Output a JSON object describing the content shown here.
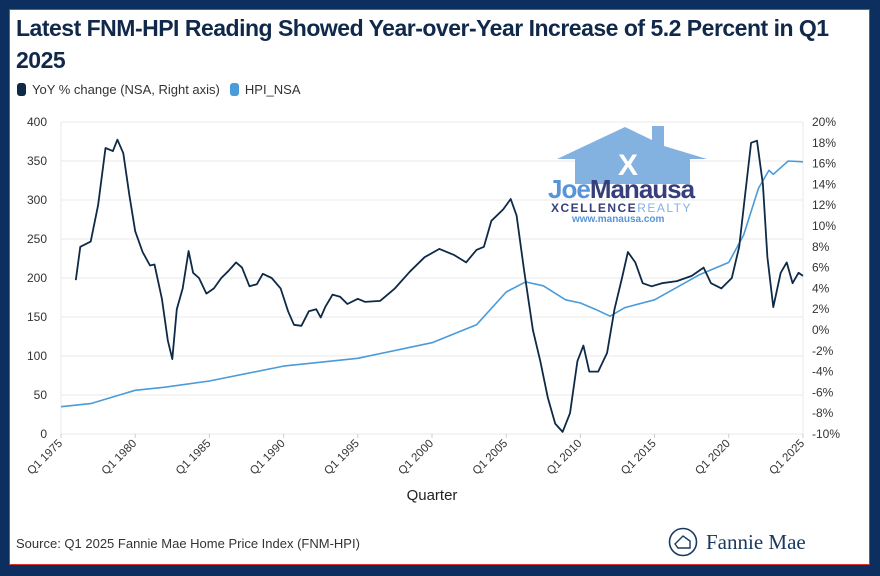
{
  "title": "Latest FNM-HPI Reading Showed Year-over-Year Increase of 5.2 Percent in Q1 2025",
  "source": "Source: Q1 2025 Fannie Mae Home Price Index (FNM-HPI)",
  "brand": "Fannie Mae",
  "watermark": {
    "line1a": "Joe",
    "line1b": "Manausa",
    "line2a": "XCELLENCE",
    "line2b": "REALTY",
    "url": "www.manausa.com"
  },
  "colors": {
    "background": "#0c2f5f",
    "yoy": "#0e2a47",
    "hpi": "#4a9bd9"
  },
  "chart_data": {
    "type": "line",
    "xlabel": "Quarter",
    "x_ticks": [
      "Q1 1975",
      "Q1 1980",
      "Q1 1985",
      "Q1 1990",
      "Q1 1995",
      "Q1 2000",
      "Q1 2005",
      "Q1 2010",
      "Q1 2015",
      "Q1 2020",
      "Q1 2025"
    ],
    "x_range": [
      1975,
      2025
    ],
    "y_left": {
      "range": [
        0,
        400
      ],
      "ticks": [
        "0",
        "50",
        "100",
        "150",
        "200",
        "250",
        "300",
        "350",
        "400"
      ]
    },
    "y_right": {
      "range": [
        -10,
        20
      ],
      "ticks": [
        "-10%",
        "-8%",
        "-6%",
        "-4%",
        "-2%",
        "0%",
        "2%",
        "4%",
        "6%",
        "8%",
        "10%",
        "12%",
        "14%",
        "16%",
        "18%",
        "20%"
      ]
    },
    "grid": true,
    "legend_position": "top-left",
    "series": [
      {
        "name": "YoY % change (NSA, Right axis)",
        "axis": "right",
        "x": [
          1976,
          1976.3,
          1977,
          1977.5,
          1978,
          1978.5,
          1978.8,
          1979.2,
          1979.6,
          1980,
          1980.5,
          1981,
          1981.3,
          1981.8,
          1982.2,
          1982.5,
          1982.8,
          1983.2,
          1983.6,
          1983.9,
          1984.3,
          1984.8,
          1985.3,
          1985.8,
          1986.3,
          1986.8,
          1987.2,
          1987.7,
          1988.2,
          1988.6,
          1989.2,
          1989.8,
          1990.3,
          1990.7,
          1991.2,
          1991.7,
          1992.2,
          1992.5,
          1992.8,
          1993.3,
          1993.8,
          1994.3,
          1995,
          1995.5,
          1996.5,
          1997.5,
          1998.5,
          1999.5,
          2000.5,
          2001.5,
          2002.3,
          2003,
          2003.5,
          2004,
          2004.8,
          2005.3,
          2005.7,
          2006.2,
          2006.8,
          2007.3,
          2007.8,
          2008.3,
          2008.8,
          2009.3,
          2009.8,
          2010.2,
          2010.6,
          2011.2,
          2011.8,
          2012.3,
          2012.8,
          2013.2,
          2013.7,
          2014.2,
          2014.8,
          2015.5,
          2016.5,
          2017.5,
          2018.3,
          2018.8,
          2019.5,
          2020.2,
          2020.7,
          2021.1,
          2021.5,
          2021.9,
          2022.3,
          2022.6,
          2023,
          2023.5,
          2023.9,
          2024.3,
          2024.7,
          2025
        ],
        "values": [
          4.8,
          8,
          8.5,
          12,
          17.5,
          17.2,
          18.3,
          17,
          13,
          9.5,
          7.5,
          6.2,
          6.3,
          3,
          -1,
          -2.8,
          2,
          4,
          7.6,
          5.5,
          5,
          3.5,
          4,
          5,
          5.7,
          6.5,
          6,
          4.2,
          4.4,
          5.4,
          5,
          4,
          1.8,
          0.5,
          0.4,
          1.8,
          2,
          1.2,
          2.2,
          3.4,
          3.2,
          2.5,
          3,
          2.7,
          2.8,
          4,
          5.6,
          7,
          7.8,
          7.2,
          6.5,
          7.7,
          8,
          10.5,
          11.6,
          12.6,
          11,
          5.8,
          0,
          -3,
          -6.5,
          -9,
          -9.8,
          -8,
          -3,
          -1.5,
          -4,
          -4,
          -2.2,
          2,
          5,
          7.5,
          6.5,
          4.5,
          4.2,
          4.5,
          4.7,
          5.2,
          6,
          4.5,
          4,
          5,
          8,
          13,
          18,
          18.2,
          14,
          7,
          2.2,
          5.5,
          6.5,
          4.5,
          5.5,
          5.2
        ]
      },
      {
        "name": "HPI_NSA",
        "axis": "left",
        "x": [
          1975,
          1977,
          1980,
          1982,
          1985,
          1990,
          1995,
          2000,
          2003,
          2005,
          2006.3,
          2007.5,
          2009,
          2010,
          2011,
          2012,
          2013,
          2015,
          2018,
          2020,
          2021,
          2022,
          2022.7,
          2023,
          2024,
          2025
        ],
        "values": [
          35,
          39,
          56,
          60,
          68,
          87,
          97,
          117,
          140,
          182,
          195,
          190,
          172,
          168,
          160,
          151,
          162,
          172,
          204,
          220,
          255,
          315,
          338,
          333,
          350,
          349
        ]
      }
    ]
  }
}
